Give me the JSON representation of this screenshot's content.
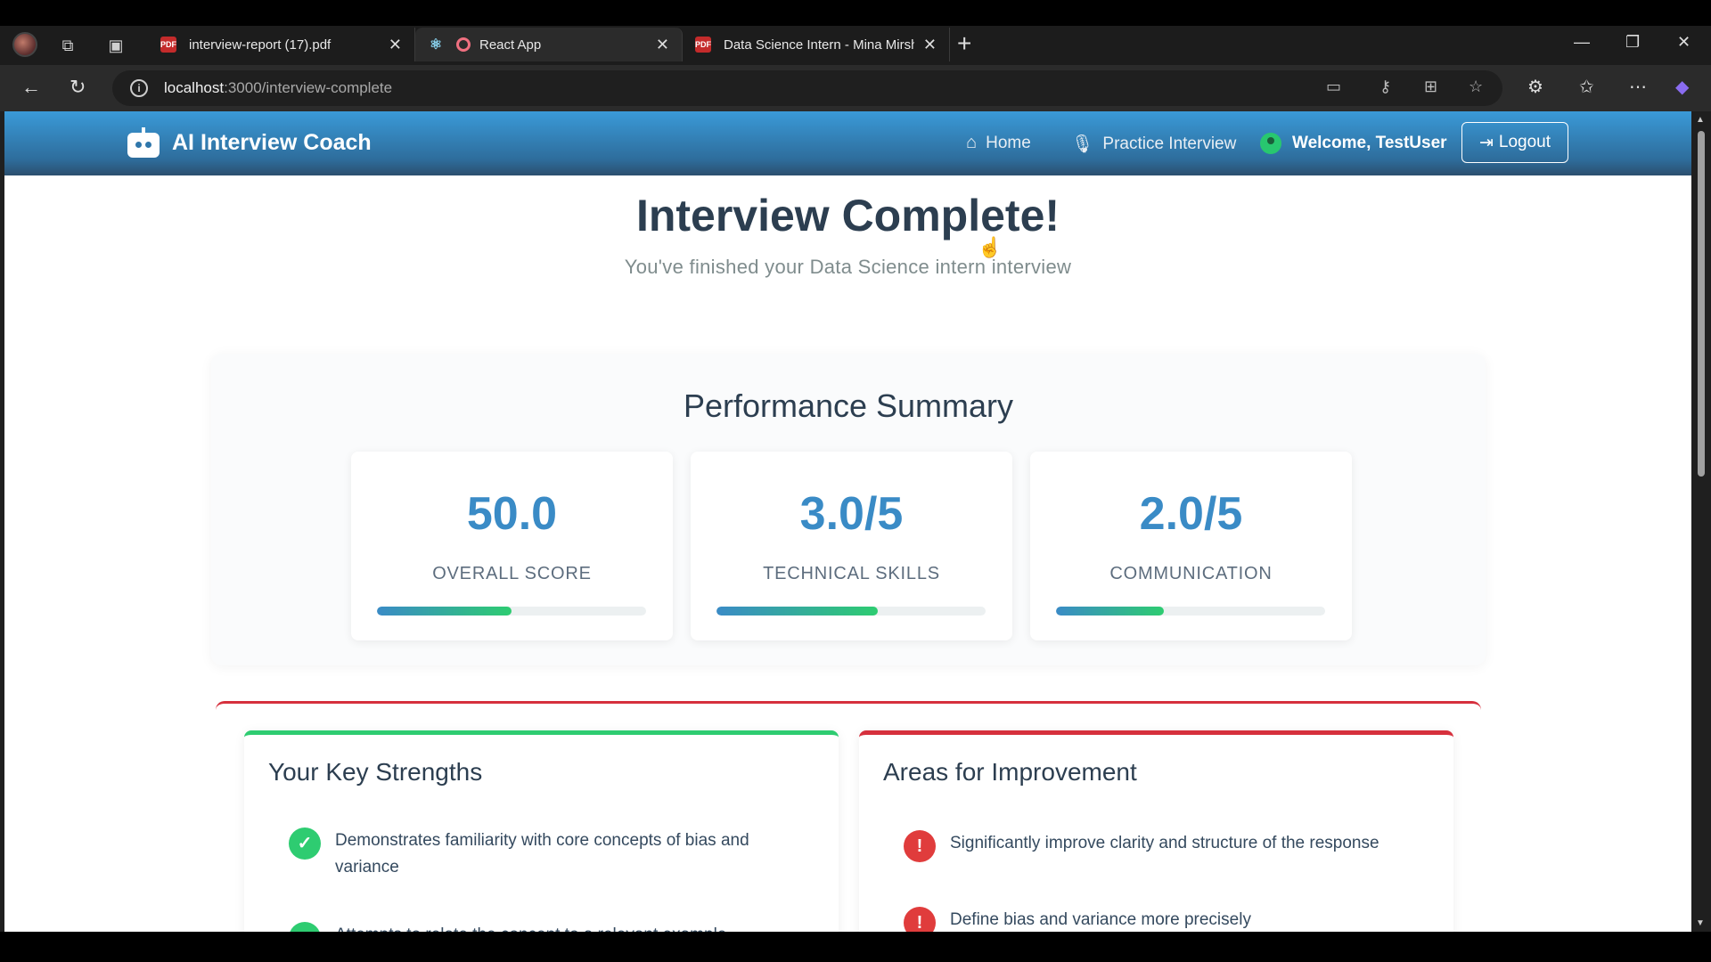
{
  "browser": {
    "tabs": [
      {
        "title": "interview-report (17).pdf",
        "favicon": "pdf-icon"
      },
      {
        "title": "React App",
        "favicon": "react-icon"
      },
      {
        "title": "Data Science Intern - Mina Mirsha",
        "favicon": "pdf-icon"
      }
    ],
    "url_host": "localhost",
    "url_path": ":3000/interview-complete"
  },
  "app": {
    "brand": "AI Interview Coach",
    "nav": {
      "home": "Home",
      "practice": "Practice Interview",
      "welcome": "Welcome, TestUser",
      "logout": "Logout"
    }
  },
  "page": {
    "title": "Interview Complete!",
    "subtitle": "You've finished your Data Science intern interview"
  },
  "summary": {
    "title": "Performance Summary",
    "cards": [
      {
        "value": "50.0",
        "label": "OVERALL SCORE",
        "progress": 0.5
      },
      {
        "value": "3.0/5",
        "label": "TECHNICAL SKILLS",
        "progress": 0.6
      },
      {
        "value": "2.0/5",
        "label": "COMMUNICATION",
        "progress": 0.4
      }
    ]
  },
  "strengths": {
    "title": "Your Key Strengths",
    "items": [
      "Demonstrates familiarity with core concepts of bias and variance",
      "Attempts to relate the concept to a relevant example"
    ]
  },
  "improvements": {
    "title": "Areas for Improvement",
    "items": [
      "Significantly improve clarity and structure of the response",
      "Define bias and variance more precisely"
    ]
  },
  "colors": {
    "primary": "#3a8bc6",
    "success": "#2ecc71",
    "danger": "#d6303d",
    "heading": "#2c3e50"
  }
}
